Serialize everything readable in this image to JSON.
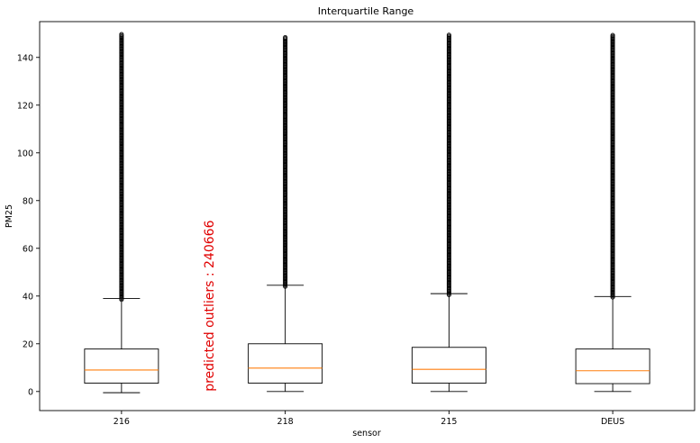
{
  "chart_data": {
    "type": "box",
    "title": "Interquartile Range",
    "xlabel": "sensor",
    "ylabel": "PM25",
    "ylim": [
      -8,
      155
    ],
    "yticks": [
      0,
      20,
      40,
      60,
      80,
      100,
      120,
      140
    ],
    "categories": [
      "216",
      "218",
      "215",
      "DEUS"
    ],
    "boxes": [
      {
        "category": "216",
        "whisker_low": -0.5,
        "q1": 3.5,
        "median": 9.0,
        "q3": 17.8,
        "whisker_high": 39.0,
        "outlier_min": 38.5,
        "outlier_max": 150
      },
      {
        "category": "218",
        "whisker_low": 0.0,
        "q1": 3.5,
        "median": 9.8,
        "q3": 20.0,
        "whisker_high": 44.5,
        "outlier_min": 44.0,
        "outlier_max": 148.5
      },
      {
        "category": "215",
        "whisker_low": 0.0,
        "q1": 3.5,
        "median": 9.3,
        "q3": 18.5,
        "whisker_high": 41.0,
        "outlier_min": 40.5,
        "outlier_max": 149.5
      },
      {
        "category": "DEUS",
        "whisker_low": 0.0,
        "q1": 3.3,
        "median": 8.7,
        "q3": 17.8,
        "whisker_high": 39.8,
        "outlier_min": 39.5,
        "outlier_max": 149.5
      }
    ],
    "annotation": {
      "text": "predicted outliers : 240666",
      "x_position": 0.5,
      "y_value": 0,
      "color": "#e00000"
    },
    "colors": {
      "box": "#000000",
      "median": "#ff7f0e",
      "outlier": "#000000"
    },
    "grid": false,
    "legend": "none"
  }
}
